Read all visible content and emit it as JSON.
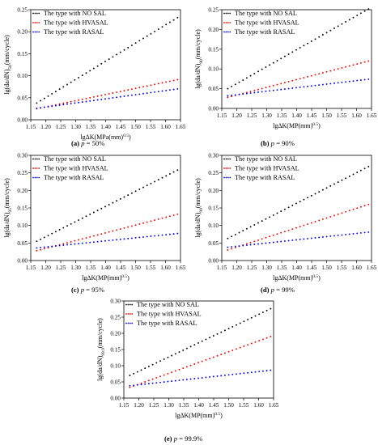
{
  "colors": {
    "NO SAL": "#000000",
    "HVASAL": "#ff0000",
    "RASAL": "#0000ff"
  },
  "chart_data": [
    {
      "type": "scatter",
      "caption_letter": "(a)",
      "caption_var": "p",
      "caption_eq": " = 50%",
      "ylabel": "lg(da/dN)",
      "ylabel_sub": "50",
      "ylabel_tail": "(mm/cycle)",
      "xlabel": "lgΔK(MPa(mm)",
      "xlabel_sup": "0.5",
      "xlabel_tail": ")",
      "xlim": [
        1.15,
        1.65
      ],
      "ylim": [
        0.0,
        0.25
      ],
      "xticks": [
        "1.15",
        "1.20",
        "1.25",
        "1.30",
        "1.35",
        "1.40",
        "1.45",
        "1.50",
        "1.55",
        "1.60",
        "1.65"
      ],
      "yticks": [
        "0.00",
        "0.05",
        "0.10",
        "0.15",
        "0.20",
        "0.25"
      ],
      "legend": "top-left",
      "grid": false,
      "x_range": [
        1.17,
        1.64
      ],
      "series": [
        {
          "name": "The type with NO SAL",
          "color": "#000000",
          "y_start": 0.038,
          "y_end": 0.232
        },
        {
          "name": "The type with HVASAL",
          "color": "#ff0000",
          "y_start": 0.025,
          "y_end": 0.091
        },
        {
          "name": "The type with RASAL",
          "color": "#0000ff",
          "y_start": 0.026,
          "y_end": 0.07
        }
      ]
    },
    {
      "type": "scatter",
      "caption_letter": "(b)",
      "caption_var": "p",
      "caption_eq": " = 90%",
      "ylabel": "lg(da/dN)",
      "ylabel_sub": "90",
      "ylabel_tail": "(mm/cycle)",
      "xlabel": "lgΔK(MP(mm)",
      "xlabel_sup": "0.5",
      "xlabel_tail": ")",
      "xlim": [
        1.15,
        1.65
      ],
      "ylim": [
        0.0,
        0.25
      ],
      "xticks": [
        "1.15",
        "1.20",
        "1.25",
        "1.30",
        "1.35",
        "1.40",
        "1.45",
        "1.50",
        "1.55",
        "1.60",
        "1.65"
      ],
      "yticks": [
        "0.00",
        "0.05",
        "0.10",
        "0.15",
        "0.20",
        "0.25"
      ],
      "legend": "top-left",
      "grid": false,
      "x_range": [
        1.17,
        1.64
      ],
      "series": [
        {
          "name": "The type with NO SAL",
          "color": "#000000",
          "y_start": 0.05,
          "y_end": 0.252
        },
        {
          "name": "The type with HVASAL",
          "color": "#ff0000",
          "y_start": 0.028,
          "y_end": 0.12
        },
        {
          "name": "The type with RASAL",
          "color": "#0000ff",
          "y_start": 0.032,
          "y_end": 0.074
        }
      ]
    },
    {
      "type": "scatter",
      "caption_letter": "(c)",
      "caption_var": "p",
      "caption_eq": " = 95%",
      "ylabel": "lg(da/dN)",
      "ylabel_sub": "95",
      "ylabel_tail": "(mm/cycle)",
      "xlabel": "lgΔK(MP(mm)",
      "xlabel_sup": "0.5",
      "xlabel_tail": ")",
      "xlim": [
        1.15,
        1.65
      ],
      "ylim": [
        0.0,
        0.3
      ],
      "xticks": [
        "1.15",
        "1.20",
        "1.25",
        "1.30",
        "1.35",
        "1.40",
        "1.45",
        "1.50",
        "1.55",
        "1.60",
        "1.65"
      ],
      "yticks": [
        "0.00",
        "0.05",
        "0.10",
        "0.15",
        "0.20",
        "0.25",
        "0.30"
      ],
      "legend": "top-left",
      "grid": false,
      "x_range": [
        1.17,
        1.64
      ],
      "series": [
        {
          "name": "The type with NO SAL",
          "color": "#000000",
          "y_start": 0.055,
          "y_end": 0.258
        },
        {
          "name": "The type with HVASAL",
          "color": "#ff0000",
          "y_start": 0.028,
          "y_end": 0.132
        },
        {
          "name": "The type with RASAL",
          "color": "#0000ff",
          "y_start": 0.036,
          "y_end": 0.077
        }
      ]
    },
    {
      "type": "scatter",
      "caption_letter": "(d)",
      "caption_var": "p",
      "caption_eq": " = 99%",
      "ylabel": "lg(da/dN)",
      "ylabel_sub": "99",
      "ylabel_tail": "(mm/cycle)",
      "xlabel": "lgΔK(MP(mm)",
      "xlabel_sup": "0.5",
      "xlabel_tail": ")",
      "xlim": [
        1.15,
        1.65
      ],
      "ylim": [
        0.0,
        0.3
      ],
      "xticks": [
        "1.15",
        "1.20",
        "1.25",
        "1.30",
        "1.35",
        "1.40",
        "1.45",
        "1.50",
        "1.55",
        "1.60",
        "1.65"
      ],
      "yticks": [
        "0.00",
        "0.05",
        "0.10",
        "0.15",
        "0.20",
        "0.25",
        "0.30"
      ],
      "legend": "top-left",
      "grid": false,
      "x_range": [
        1.17,
        1.64
      ],
      "series": [
        {
          "name": "The type with NO SAL",
          "color": "#000000",
          "y_start": 0.063,
          "y_end": 0.268
        },
        {
          "name": "The type with HVASAL",
          "color": "#ff0000",
          "y_start": 0.03,
          "y_end": 0.16
        },
        {
          "name": "The type with RASAL",
          "color": "#0000ff",
          "y_start": 0.038,
          "y_end": 0.081
        }
      ]
    },
    {
      "type": "scatter",
      "caption_letter": "(e)",
      "caption_var": "p",
      "caption_eq": " = 99.9%",
      "ylabel": "lg(da/dN)",
      "ylabel_sub": "99.9",
      "ylabel_tail": "(mm/cycle)",
      "xlabel": "lgΔK(MP(mm)",
      "xlabel_sup": "0.5",
      "xlabel_tail": ")",
      "xlim": [
        1.15,
        1.65
      ],
      "ylim": [
        0.0,
        0.3
      ],
      "xticks": [
        "1.15",
        "1.20",
        "1.25",
        "1.30",
        "1.35",
        "1.40",
        "1.45",
        "1.50",
        "1.55",
        "1.60",
        "1.65"
      ],
      "yticks": [
        "0.00",
        "0.05",
        "0.10",
        "0.15",
        "0.20",
        "0.25",
        "0.30"
      ],
      "legend": "top-left",
      "grid": false,
      "x_range": [
        1.17,
        1.64
      ],
      "series": [
        {
          "name": "The type with NO SAL",
          "color": "#000000",
          "y_start": 0.07,
          "y_end": 0.276
        },
        {
          "name": "The type with HVASAL",
          "color": "#ff0000",
          "y_start": 0.033,
          "y_end": 0.19
        },
        {
          "name": "The type with RASAL",
          "color": "#0000ff",
          "y_start": 0.038,
          "y_end": 0.086
        }
      ]
    }
  ]
}
